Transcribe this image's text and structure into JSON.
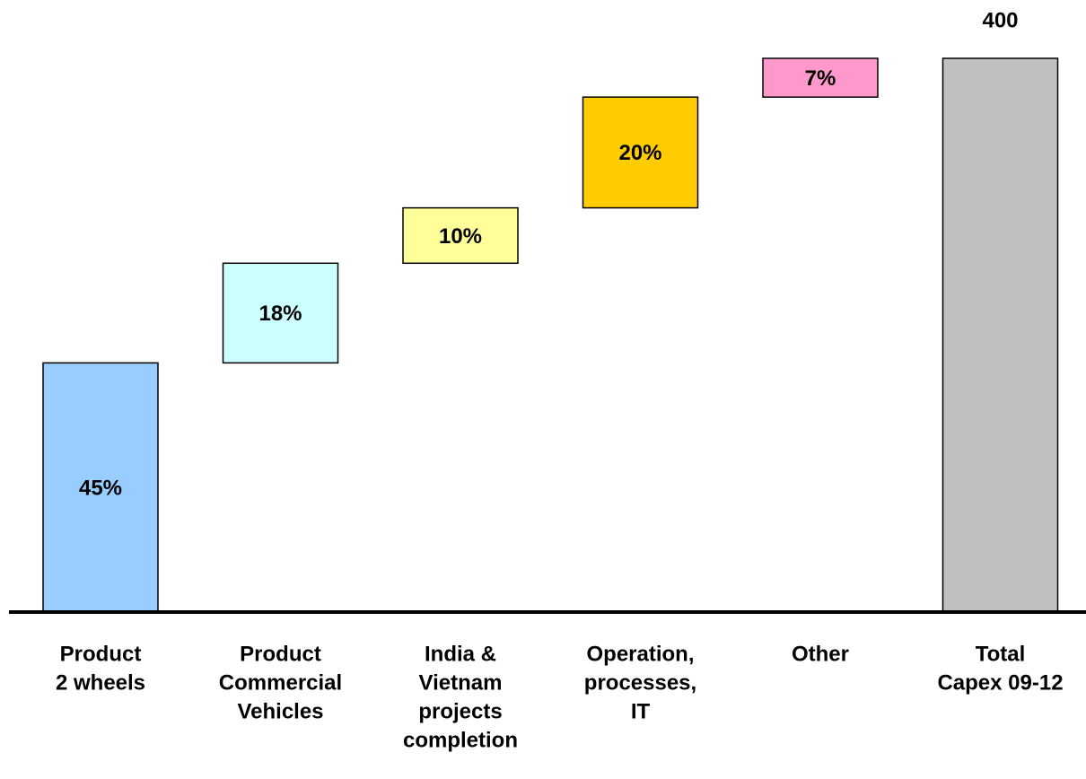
{
  "chart_data": {
    "type": "waterfall",
    "categories": [
      [
        "Product",
        "2 wheels"
      ],
      [
        "Product",
        "Commercial",
        "Vehicles"
      ],
      [
        "India &",
        "Vietnam",
        "projects",
        "completion"
      ],
      [
        "Operation,",
        "processes,",
        "IT"
      ],
      [
        "Other"
      ]
    ],
    "values": [
      45,
      18,
      10,
      20,
      7
    ],
    "value_labels": [
      "45%",
      "18%",
      "10%",
      "20%",
      "7%"
    ],
    "colors": [
      "#99ccff",
      "#ccffff",
      "#ffff99",
      "#ffcc00",
      "#ff99cc"
    ],
    "total": {
      "category": [
        "Total",
        "Capex 09-12"
      ],
      "value": 400,
      "color": "#c0c0c0"
    }
  }
}
